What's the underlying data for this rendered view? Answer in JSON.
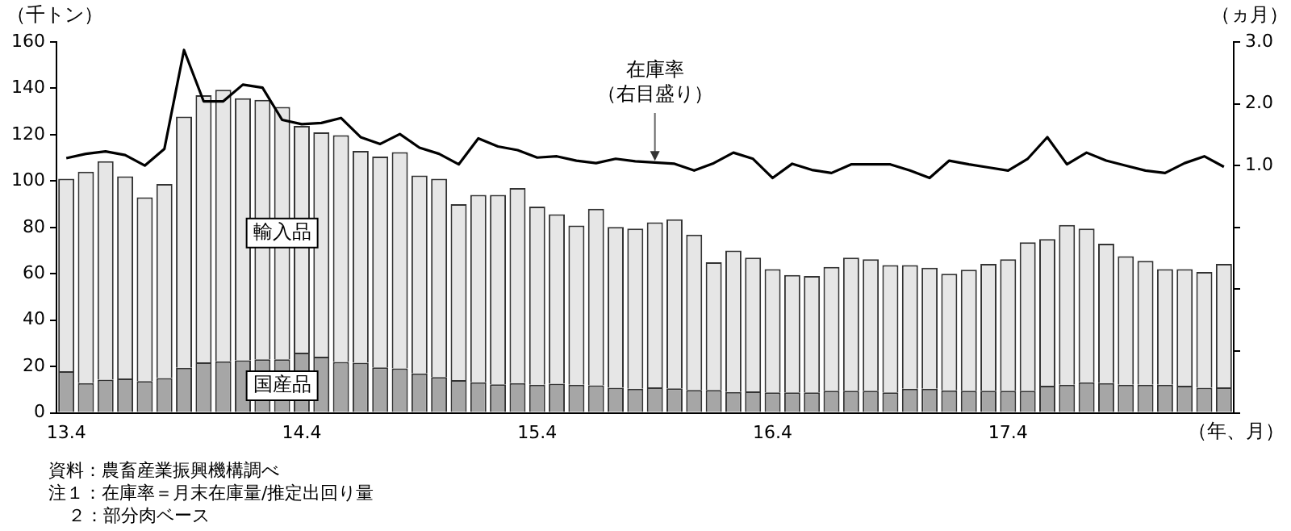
{
  "chart_data": {
    "type": "bar",
    "stacked": true,
    "ylabel": "（千トン）",
    "y2label": "（ヵ月）",
    "xlabel": "（年、月）",
    "categories": [
      "13.4",
      null,
      null,
      null,
      null,
      null,
      null,
      null,
      null,
      null,
      null,
      null,
      "14.4",
      null,
      null,
      null,
      null,
      null,
      null,
      null,
      null,
      null,
      null,
      null,
      "15.4",
      null,
      null,
      null,
      null,
      null,
      null,
      null,
      null,
      null,
      null,
      null,
      "16.4",
      null,
      null,
      null,
      null,
      null,
      null,
      null,
      null,
      null,
      null,
      null,
      "17.4",
      null,
      null,
      null,
      null,
      null,
      null,
      null,
      null,
      null,
      null,
      null
    ],
    "series": [
      {
        "name": "国産品",
        "color": "#a6a6a6",
        "values": [
          18,
          12.8,
          14.3,
          14.8,
          13.7,
          15,
          19.4,
          21.8,
          22.2,
          22.7,
          23.1,
          23.1,
          26,
          24.2,
          22,
          21.6,
          19.6,
          19.2,
          17,
          15.4,
          14.1,
          13.2,
          12.3,
          12.8,
          12.1,
          12.6,
          12.1,
          11.9,
          10.8,
          10.4,
          11,
          10.6,
          9.9,
          9.9,
          9,
          9.3,
          8.8,
          8.8,
          8.8,
          9.5,
          9.5,
          9.5,
          8.8,
          10.4,
          10.4,
          9.7,
          9.5,
          9.5,
          9.5,
          9.5,
          11.7,
          12.1,
          13.2,
          12.8,
          12.1,
          12.1,
          12.1,
          11.7,
          10.8,
          11
        ]
      },
      {
        "name": "輸入品",
        "color": "#e6e6e6",
        "values": [
          83,
          91.2,
          94.3,
          87.2,
          79.3,
          83.7,
          108.4,
          115.2,
          117.2,
          113,
          111.9,
          108.9,
          97.8,
          96.8,
          97.8,
          91.4,
          91,
          93.3,
          85.4,
          85.6,
          75.9,
          80.8,
          81.7,
          84.2,
          76.9,
          73.1,
          68.7,
          76.1,
          69.4,
          69.1,
          71.2,
          72.9,
          67,
          55.1,
          61,
          57.7,
          53.2,
          50.7,
          50.2,
          53.5,
          57.5,
          56.8,
          54.9,
          53.3,
          52.2,
          50.3,
          52.2,
          54.8,
          56.8,
          64.1,
          63.3,
          69,
          66.3,
          60.2,
          55.5,
          53.5,
          49.9,
          50.3,
          50,
          53.3
        ]
      },
      {
        "name": "在庫率（右目盛り）",
        "type": "line",
        "axis": "y2",
        "color": "#000000",
        "values": [
          1.12,
          1.19,
          1.23,
          1.17,
          1.0,
          1.27,
          2.87,
          2.04,
          2.04,
          2.31,
          2.26,
          1.74,
          1.67,
          1.69,
          1.77,
          1.46,
          1.35,
          1.51,
          1.29,
          1.19,
          1.02,
          1.44,
          1.31,
          1.25,
          1.13,
          1.15,
          1.08,
          1.04,
          1.11,
          1.07,
          1.05,
          1.03,
          0.92,
          1.04,
          1.21,
          1.11,
          0.8,
          1.03,
          0.93,
          0.88,
          1.02,
          1.02,
          1.02,
          0.92,
          0.8,
          1.08,
          1.02,
          0.97,
          0.92,
          1.11,
          1.46,
          1.02,
          1.21,
          1.08,
          1.0,
          0.92,
          0.88,
          1.04,
          1.15,
          0.98
        ]
      }
    ],
    "ylim": [
      0,
      160
    ],
    "yticks": [
      0,
      20,
      40,
      60,
      80,
      100,
      120,
      140,
      160
    ],
    "y2lim": [
      -3,
      3
    ],
    "y2ticks": [
      {
        "value": -3,
        "label": null
      },
      {
        "value": -2,
        "label": null
      },
      {
        "value": -1,
        "label": null
      },
      {
        "value": 0,
        "label": null
      },
      {
        "value": 1,
        "label": "1.0"
      },
      {
        "value": 2,
        "label": "2.0"
      },
      {
        "value": 3,
        "label": "3.0"
      }
    ],
    "grid": false,
    "legend": false,
    "marker": "none",
    "line_style": "solid",
    "annotations": [
      "資料：農畜産業振興機構調べ",
      "注１：在庫率＝月末在庫量/推定出回り量",
      "２：部分肉ベース"
    ]
  }
}
